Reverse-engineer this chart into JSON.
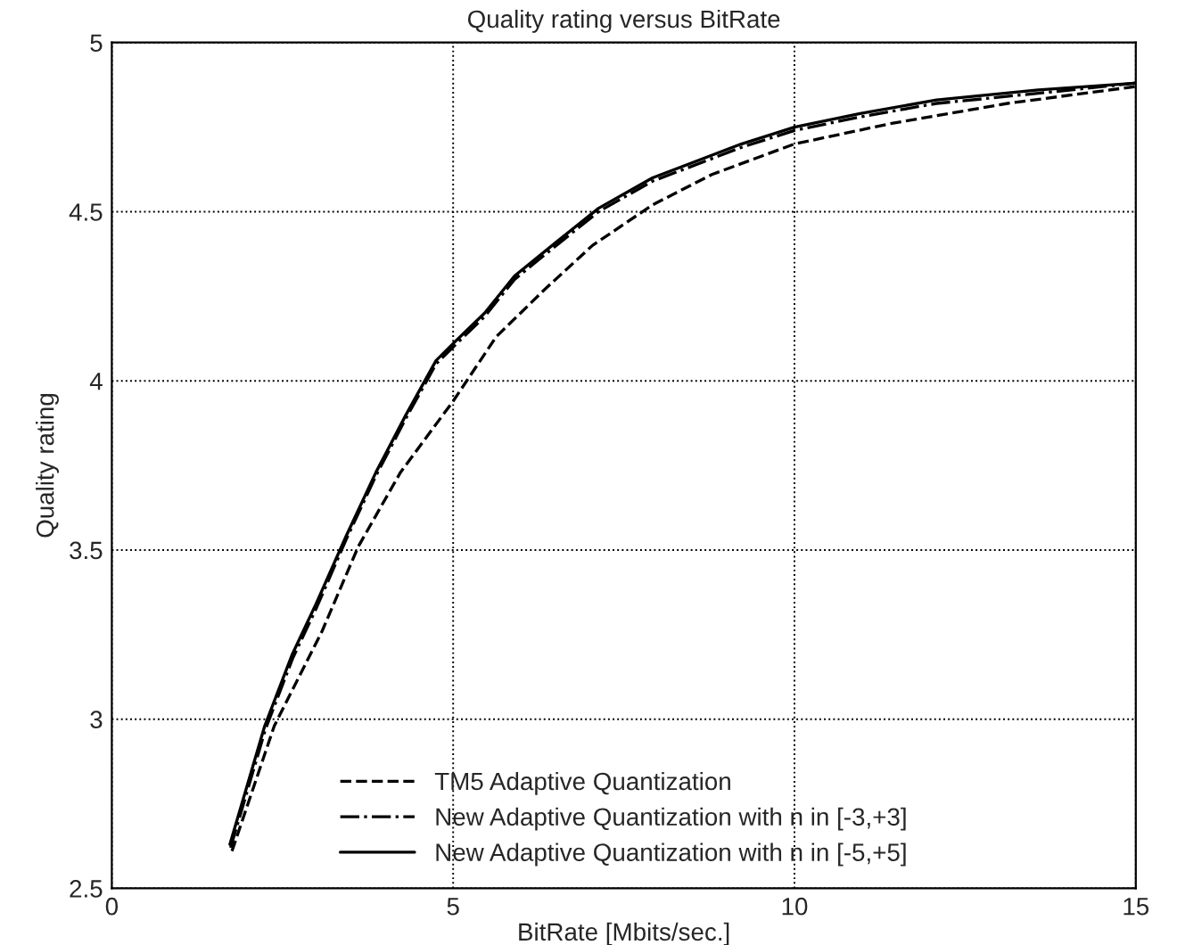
{
  "chart_data": {
    "type": "line",
    "title": "Quality rating versus BitRate",
    "xlabel": "BitRate [Mbits/sec.]",
    "ylabel": "Quality rating",
    "xlim": [
      0,
      15
    ],
    "ylim": [
      2.5,
      5
    ],
    "xticks": [
      0,
      5,
      10,
      15
    ],
    "yticks": [
      2.5,
      3,
      3.5,
      4,
      4.5,
      5
    ],
    "grid": true,
    "legend": "bottom",
    "series": [
      {
        "name": "TM5 Adaptive Quantization",
        "color": "#000000",
        "line_style": "dashed",
        "x": [
          1.76,
          2.38,
          3.08,
          3.61,
          4.23,
          5,
          5.63,
          6.34,
          7.04,
          7.92,
          8.79,
          10,
          11.4,
          13.12,
          15
        ],
        "values": [
          2.61,
          2.98,
          3.26,
          3.51,
          3.73,
          3.94,
          4.13,
          4.27,
          4.4,
          4.52,
          4.61,
          4.7,
          4.76,
          4.82,
          4.87
        ]
      },
      {
        "name": "New Adaptive Quantization with n in [-3,+3]",
        "color": "#000000",
        "line_style": "dashdot",
        "x": [
          1.74,
          2.25,
          2.65,
          3,
          3.43,
          3.87,
          4.31,
          4.75,
          5,
          5.46,
          5.9,
          6.51,
          7.13,
          7.92,
          9.22,
          10,
          10.96,
          12.08,
          13.57,
          15
        ],
        "values": [
          2.62,
          2.97,
          3.18,
          3.33,
          3.53,
          3.72,
          3.89,
          4.05,
          4.1,
          4.19,
          4.3,
          4.4,
          4.5,
          4.59,
          4.69,
          4.74,
          4.78,
          4.82,
          4.85,
          4.88
        ]
      },
      {
        "name": "New Adaptive Quantization with n in [-5,+5]",
        "color": "#000000",
        "line_style": "solid",
        "x": [
          1.73,
          2.24,
          2.64,
          2.99,
          3.43,
          3.87,
          4.31,
          4.75,
          5,
          5.46,
          5.9,
          6.51,
          7.13,
          7.92,
          9.22,
          10,
          10.96,
          12.08,
          13.57,
          15
        ],
        "values": [
          2.63,
          2.98,
          3.19,
          3.34,
          3.54,
          3.73,
          3.9,
          4.06,
          4.11,
          4.2,
          4.31,
          4.41,
          4.51,
          4.6,
          4.7,
          4.75,
          4.79,
          4.83,
          4.86,
          4.88
        ]
      }
    ]
  }
}
